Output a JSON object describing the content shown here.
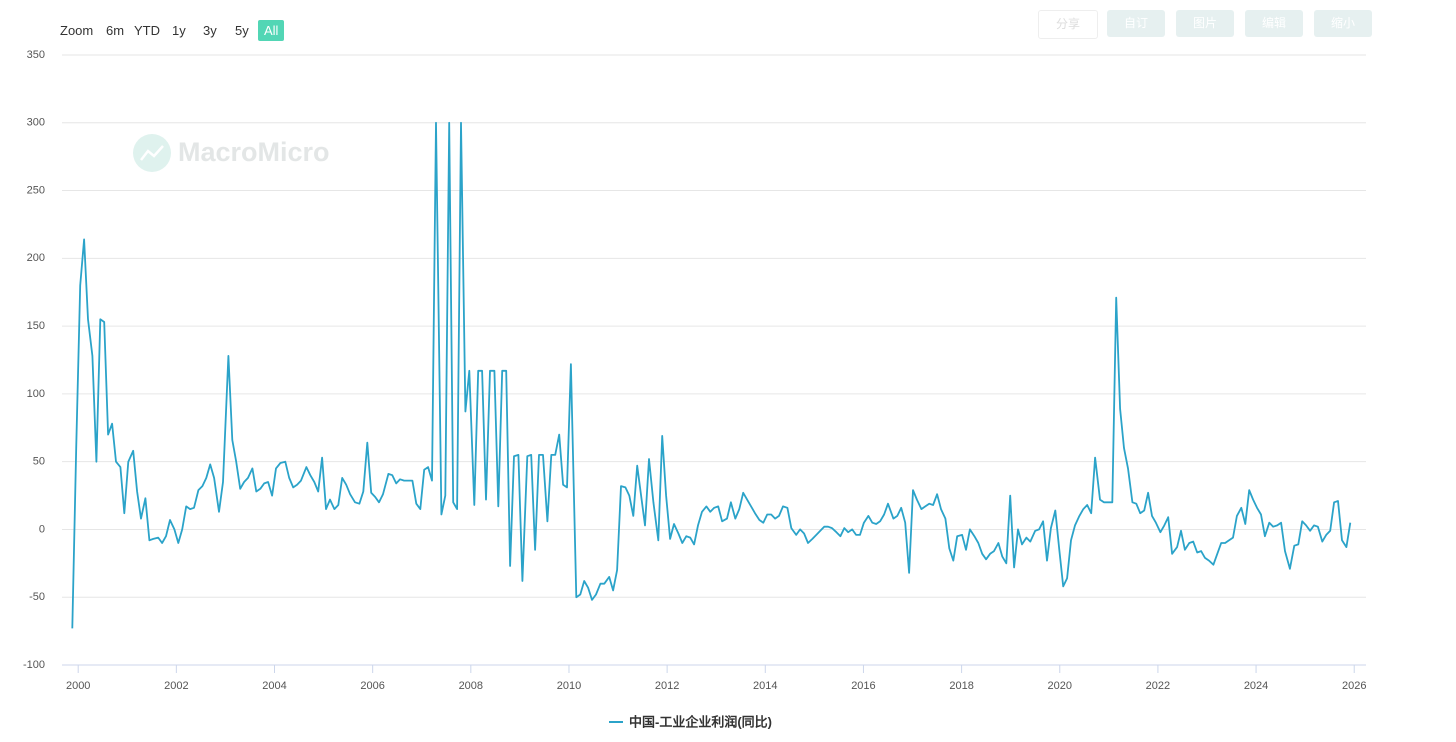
{
  "watermark": "MacroMicro",
  "range_selector": {
    "label": "Zoom",
    "buttons": [
      "6m",
      "YTD",
      "1y",
      "3y",
      "5y",
      "All"
    ],
    "selected": 5
  },
  "toolbar": [
    "分享",
    "自订",
    "图片",
    "编辑",
    "缩小"
  ],
  "chart_data": {
    "type": "line",
    "x": [
      1999.88,
      1999.96,
      2000.04,
      2000.12,
      2000.2,
      2000.29,
      2000.37,
      2000.45,
      2000.53,
      2000.61,
      2000.69,
      2000.77,
      2000.86,
      2000.94,
      2001.02,
      2001.12,
      2001.2,
      2001.28,
      2001.37,
      2001.45,
      2001.53,
      2001.63,
      2001.71,
      2001.79,
      2001.87,
      2001.96,
      2002.04,
      2002.12,
      2002.2,
      2002.28,
      2002.36,
      2002.45,
      2002.53,
      2002.61,
      2002.69,
      2002.77,
      2002.87,
      2002.95,
      2003.06,
      2003.14,
      2003.22,
      2003.3,
      2003.38,
      2003.46,
      2003.55,
      2003.63,
      2003.71,
      2003.79,
      2003.87,
      2003.95,
      2004.03,
      2004.12,
      2004.22,
      2004.3,
      2004.38,
      2004.46,
      2004.54,
      2004.65,
      2004.73,
      2004.81,
      2004.89,
      2004.97,
      2005.05,
      2005.13,
      2005.22,
      2005.3,
      2005.38,
      2005.46,
      2005.54,
      2005.64,
      2005.73,
      2005.81,
      2005.89,
      2005.97,
      2006.05,
      2006.13,
      2006.21,
      2006.32,
      2006.4,
      2006.48,
      2006.56,
      2006.64,
      2006.72,
      2006.81,
      2006.89,
      2006.97,
      2007.05,
      2007.13,
      2007.21,
      2007.29,
      2007.4,
      2007.48,
      2007.56,
      2007.64,
      2007.72,
      2007.8,
      2007.89,
      2007.97,
      2008.07,
      2008.15,
      2008.23,
      2008.31,
      2008.39,
      2008.48,
      2008.56,
      2008.64,
      2008.72,
      2008.8,
      2008.88,
      2008.97,
      2009.05,
      2009.15,
      2009.23,
      2009.31,
      2009.39,
      2009.47,
      2009.56,
      2009.64,
      2009.72,
      2009.8,
      2009.88,
      2009.96,
      2010.04,
      2010.15,
      2010.23,
      2010.31,
      2010.39,
      2010.47,
      2010.55,
      2010.64,
      2010.72,
      2010.82,
      2010.9,
      2010.98,
      2011.06,
      2011.15,
      2011.23,
      2011.31,
      2011.39,
      2011.47,
      2011.55,
      2011.63,
      2011.72,
      2011.82,
      2011.9,
      2011.98,
      2012.06,
      2012.14,
      2012.23,
      2012.31,
      2012.39,
      2012.47,
      2012.55,
      2012.63,
      2012.71,
      2012.8,
      2012.88,
      2012.96,
      2013.04,
      2013.12,
      2013.22,
      2013.3,
      2013.39,
      2013.47,
      2013.55,
      2013.63,
      2013.71,
      2013.79,
      2013.88,
      2013.96,
      2014.04,
      2014.12,
      2014.2,
      2014.28,
      2014.36,
      2014.45,
      2014.53,
      2014.63,
      2014.71,
      2014.79,
      2014.87,
      2014.96,
      2015.04,
      2015.12,
      2015.2,
      2015.28,
      2015.36,
      2015.45,
      2015.53,
      2015.61,
      2015.69,
      2015.77,
      2015.85,
      2015.93,
      2016.01,
      2016.1,
      2016.18,
      2016.26,
      2016.34,
      2016.42,
      2016.5,
      2016.61,
      2016.69,
      2016.77,
      2016.85,
      2016.93,
      2017.01,
      2017.09,
      2017.18,
      2017.26,
      2017.34,
      2017.42,
      2017.5,
      2017.58,
      2017.67,
      2017.75,
      2017.83,
      2017.91,
      2018.01,
      2018.09,
      2018.17,
      2018.26,
      2018.34,
      2018.42,
      2018.5,
      2018.58,
      2018.66,
      2018.75,
      2018.83,
      2018.91,
      2018.99,
      2019.07,
      2019.15,
      2019.23,
      2019.32,
      2019.4,
      2019.5,
      2019.58,
      2019.66,
      2019.74,
      2019.82,
      2019.91,
      2019.99,
      2020.07,
      2020.15,
      2020.23,
      2020.31,
      2020.4,
      2020.48,
      2020.56,
      2020.64,
      2020.72,
      2020.82,
      2020.9,
      2020.99,
      2021.07,
      2021.15,
      2021.23,
      2021.31,
      2021.39,
      2021.48,
      2021.56,
      2021.64,
      2021.72,
      2021.8,
      2021.88,
      2021.96,
      2022.05,
      2022.13,
      2022.21,
      2022.29,
      2022.39,
      2022.47,
      2022.55,
      2022.64,
      2022.72,
      2022.8,
      2022.88,
      2022.96,
      2023.04,
      2023.13,
      2023.21,
      2023.29,
      2023.37,
      2023.45,
      2023.53,
      2023.61,
      2023.7,
      2023.78,
      2023.86,
      2023.94,
      2024.02,
      2024.1,
      2024.18,
      2024.27,
      2024.35,
      2024.43,
      2024.51,
      2024.59,
      2024.69,
      2024.78,
      2024.86,
      2024.94,
      2025.02,
      2025.1,
      2025.18,
      2025.26,
      2025.35,
      2025.43,
      2025.51,
      2025.59,
      2025.67,
      2025.75,
      2025.84,
      2025.92
    ],
    "series": [
      {
        "name": "中国-工业企业利润(同比)",
        "color": "#2ba3c9",
        "values": [
          -73,
          60,
          180,
          214,
          155,
          128,
          50,
          155,
          153,
          70,
          78,
          50,
          46,
          12,
          50,
          58,
          28,
          8,
          23,
          -8,
          -7,
          -6,
          -10,
          -5,
          7,
          0,
          -10,
          0,
          17,
          15,
          16,
          29,
          32,
          38,
          48,
          38,
          13,
          35,
          128,
          66,
          50,
          30,
          35,
          38,
          45,
          28,
          30,
          34,
          35,
          25,
          45,
          49,
          50,
          38,
          31,
          33,
          36,
          46,
          40,
          35,
          28,
          53,
          15,
          22,
          15,
          18,
          38,
          33,
          26,
          20,
          19,
          28,
          64,
          27,
          24,
          20,
          26,
          41,
          40,
          34,
          37,
          36,
          36,
          36,
          19,
          15,
          44,
          46,
          36,
          300,
          11,
          25,
          300,
          20,
          15,
          300,
          87,
          117,
          18,
          117,
          117,
          22,
          117,
          117,
          17,
          117,
          117,
          -27,
          54,
          55,
          -38,
          54,
          55,
          -15,
          55,
          55,
          6,
          55,
          55,
          70,
          33,
          31,
          122,
          -50,
          -48,
          -38,
          -43,
          -52,
          -48,
          -40,
          -40,
          -35,
          -45,
          -30,
          32,
          31,
          25,
          10,
          47,
          25,
          3,
          52,
          20,
          -8,
          69,
          25,
          -7,
          4,
          -3,
          -10,
          -5,
          -6,
          -11,
          3,
          13,
          17,
          13,
          16,
          17,
          6,
          8,
          20,
          8,
          15,
          27,
          22,
          17,
          12,
          7,
          5,
          11,
          11,
          8,
          10,
          17,
          16,
          1,
          -4,
          0,
          -3,
          -10,
          -7,
          -4,
          -1,
          2,
          2,
          1,
          -2,
          -5,
          1,
          -2,
          0,
          -4,
          -4,
          5,
          10,
          5,
          4,
          6,
          11,
          19,
          8,
          10,
          16,
          5,
          -32,
          29,
          22,
          15,
          17,
          19,
          18,
          26,
          15,
          8,
          -14,
          -23,
          -5,
          -4,
          -15,
          0,
          -5,
          -10,
          -18,
          -22,
          -18,
          -16,
          -10,
          -20,
          -25,
          25,
          -28,
          0,
          -11,
          -6,
          -9,
          -1,
          0,
          6,
          -23,
          1,
          14,
          -15,
          -42,
          -36,
          -8,
          3,
          10,
          15,
          18,
          12,
          53,
          22,
          20,
          20,
          20,
          171,
          89,
          60,
          45,
          20,
          19,
          12,
          14,
          27,
          10,
          5,
          -2,
          3,
          9,
          -18,
          -13,
          -1,
          -15,
          -10,
          -9,
          -17,
          -16,
          -21,
          -23,
          -26,
          -18,
          -10,
          -10,
          -8,
          -6,
          10,
          16,
          4,
          29,
          22,
          16,
          11,
          -5,
          5,
          2,
          3,
          5,
          -16,
          -29,
          -12,
          -11,
          6,
          3,
          -1,
          3,
          2,
          -9,
          -4,
          -1,
          20,
          21,
          -8,
          -13,
          5
        ]
      }
    ],
    "xlim": [
      1999.67,
      2026.24
    ],
    "xticks": [
      2000,
      2002,
      2004,
      2006,
      2008,
      2010,
      2012,
      2014,
      2016,
      2018,
      2020,
      2022,
      2024,
      2026
    ],
    "ylim": [
      -100,
      350
    ],
    "yticks": [
      -100,
      -50,
      0,
      50,
      100,
      150,
      200,
      250,
      300,
      350
    ],
    "grid": true
  }
}
